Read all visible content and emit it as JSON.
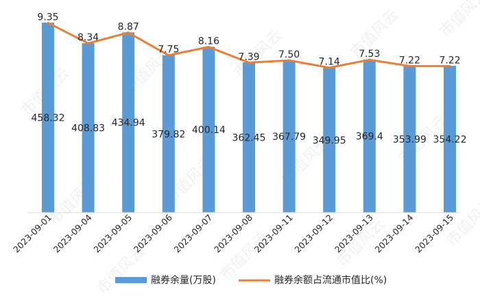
{
  "chart_data": {
    "type": "bar",
    "categories": [
      "2023-09-01",
      "2023-09-04",
      "2023-09-05",
      "2023-09-06",
      "2023-09-07",
      "2023-09-08",
      "2023-09-11",
      "2023-09-12",
      "2023-09-13",
      "2023-09-14",
      "2023-09-15"
    ],
    "series": [
      {
        "name": "融券余量(万股)",
        "type": "bar",
        "axis": "left",
        "color": "#5b9bd5",
        "values": [
          458.32,
          408.83,
          434.94,
          379.82,
          400.14,
          362.45,
          367.79,
          349.95,
          369.4,
          353.99,
          354.22
        ],
        "labels": [
          "458.32",
          "408.83",
          "434.94",
          "379.82",
          "400.14",
          "362.45",
          "367.79",
          "349.95",
          "369.4",
          "353.99",
          "354.22"
        ]
      },
      {
        "name": "融券余额占流通市值比(%)",
        "type": "line",
        "axis": "right",
        "color": "#ed7d31",
        "values": [
          9.35,
          8.34,
          8.87,
          7.75,
          8.16,
          7.39,
          7.5,
          7.14,
          7.53,
          7.22,
          7.22
        ],
        "labels": [
          "9.35",
          "8.34",
          "8.87",
          "7.75",
          "8.16",
          "7.39",
          "7.50",
          "7.14",
          "7.53",
          "7.22",
          "7.22"
        ]
      }
    ],
    "y_left_range": [
      0,
      480
    ],
    "y_right_range": [
      0,
      9.8
    ],
    "grid": false,
    "legend_position": "bottom"
  },
  "watermark": "市值风云"
}
